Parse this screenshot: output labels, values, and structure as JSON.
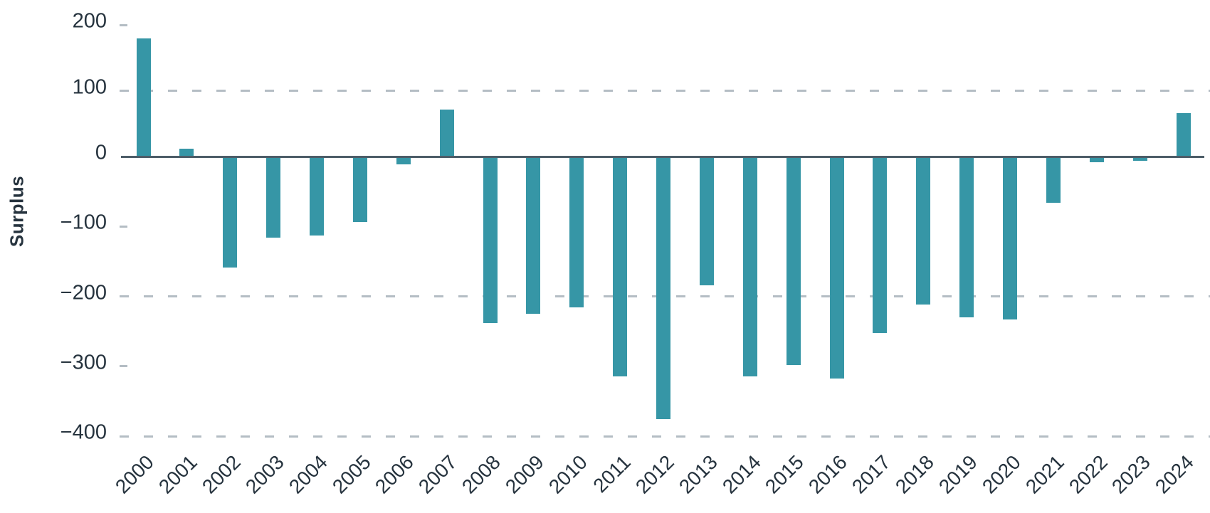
{
  "chart_data": {
    "type": "bar",
    "title": "",
    "xlabel": "",
    "ylabel": "Surplus",
    "categories": [
      "2000",
      "2001",
      "2002",
      "2003",
      "2004",
      "2005",
      "2006",
      "2007",
      "2008",
      "2009",
      "2010",
      "2011",
      "2012",
      "2013",
      "2014",
      "2015",
      "2016",
      "2017",
      "2018",
      "2019",
      "2020",
      "2021",
      "2022",
      "2023",
      "2024"
    ],
    "values": [
      180,
      12,
      -159,
      -116,
      -113,
      -94,
      -11,
      71,
      -238,
      -225,
      -216,
      -314,
      -375,
      -184,
      -314,
      -298,
      -317,
      -252,
      -212,
      -230,
      -233,
      -66,
      -8,
      -6,
      66
    ],
    "ylim": [
      -400,
      200
    ],
    "yticks": [
      200,
      100,
      0,
      -100,
      -200,
      -300,
      -400
    ],
    "grid_values": [
      100,
      -200,
      -400
    ],
    "tick_only_values": [
      200,
      -100,
      -300
    ],
    "grid": "horizontal dashed",
    "legend": "none",
    "bar_color": "#3696a6"
  },
  "colors": {
    "bar": "#3696a6",
    "axis_line": "#4d5d68",
    "grid_line": "#b4bdc4",
    "text": "#26333e",
    "background": "#ffffff"
  }
}
